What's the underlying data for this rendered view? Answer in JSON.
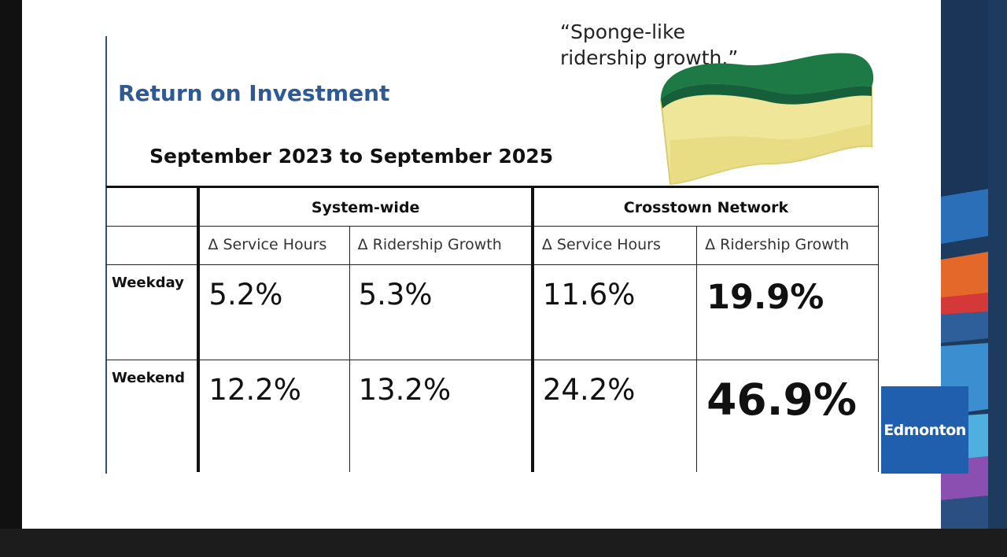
{
  "slide": {
    "title": "Return on Investment",
    "subtitle": "September 2023 to September 2025",
    "quote_line1": "“Sponge-like",
    "quote_line2": "ridership growth.”"
  },
  "table": {
    "groups": [
      "System-wide",
      "Crosstown Network"
    ],
    "metrics": [
      "Δ Service Hours",
      "Δ Ridership Growth",
      "Δ Service Hours",
      "Δ Ridership Growth"
    ],
    "rows": [
      {
        "label": "Weekday",
        "values": [
          "5.2%",
          "5.3%",
          "11.6%",
          "19.9%"
        ]
      },
      {
        "label": "Weekend",
        "values": [
          "12.2%",
          "13.2%",
          "24.2%",
          "46.9%"
        ]
      }
    ]
  },
  "logo": {
    "text": "Edmonton"
  },
  "colors": {
    "title_blue": "#2d5a96",
    "logo_blue": "#1f5fae",
    "panel_navy": "#1d3b5e",
    "sponge_green": "#1e7a45",
    "sponge_yellow": "#f2e89a"
  }
}
